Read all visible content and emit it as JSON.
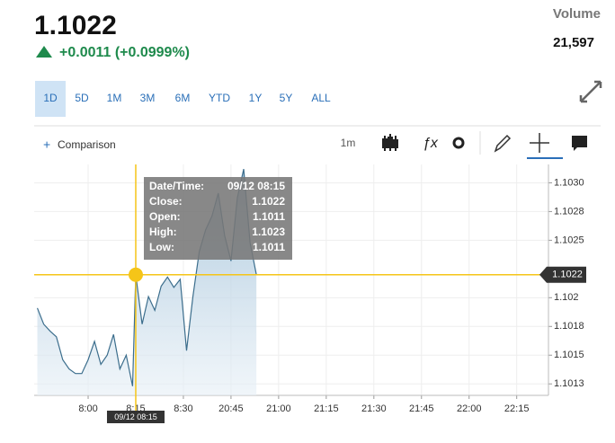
{
  "header": {
    "price": "1.1022",
    "change": "+0.0011 (+0.0999%)",
    "volume_label": "Volume",
    "volume": "21,597"
  },
  "ranges": [
    "1D",
    "5D",
    "1M",
    "3M",
    "6M",
    "YTD",
    "1Y",
    "5Y",
    "ALL"
  ],
  "toolbar": {
    "comparison": "Comparison",
    "interval": "1m"
  },
  "tooltip": {
    "rows": [
      [
        "Date/Time:",
        "09/12 08:15"
      ],
      [
        "Close:",
        "1.1022"
      ],
      [
        "Open:",
        "1.1011"
      ],
      [
        "High:",
        "1.1023"
      ],
      [
        "Low:",
        "1.1011"
      ]
    ]
  },
  "chart_data": {
    "type": "area",
    "x": [
      "07:44",
      "07:46",
      "07:48",
      "07:50",
      "07:52",
      "07:54",
      "07:56",
      "07:58",
      "08:00",
      "08:02",
      "08:04",
      "08:06",
      "08:08",
      "08:10",
      "08:12",
      "08:14",
      "08:15",
      "08:17",
      "08:19",
      "08:21",
      "08:23",
      "08:25",
      "08:27",
      "08:29",
      "08:31",
      "08:33",
      "08:35",
      "08:37",
      "08:39",
      "08:41",
      "08:43",
      "20:45",
      "20:47",
      "20:49",
      "20:51",
      "20:53"
    ],
    "values": [
      1.10191,
      1.10177,
      1.10171,
      1.10166,
      1.10146,
      1.10138,
      1.10134,
      1.10134,
      1.10146,
      1.10162,
      1.10142,
      1.1015,
      1.10168,
      1.10138,
      1.1015,
      1.10123,
      1.1022,
      1.10177,
      1.10201,
      1.10189,
      1.1021,
      1.10218,
      1.10209,
      1.10216,
      1.10154,
      1.10201,
      1.1024,
      1.10259,
      1.10271,
      1.10291,
      1.10254,
      1.10232,
      1.10287,
      1.10312,
      1.10248,
      1.1022
    ],
    "color": "#3b6d8c",
    "xlim": [
      "07:43",
      "22:25"
    ],
    "xticks": [
      "8:00",
      "8:15",
      "8:30",
      "20:45",
      "21:00",
      "21:15",
      "21:30",
      "21:45",
      "22:00",
      "22:15"
    ],
    "ylim": [
      1.10115,
      1.10316
    ],
    "yticks": [
      {
        "value": 1.103,
        "label": "1.1030"
      },
      {
        "value": 1.10275,
        "label": "1.1028"
      },
      1.1025,
      1.102,
      {
        "value": 1.10175,
        "label": "1.1018"
      },
      1.1015,
      {
        "value": 1.10125,
        "label": "1.1013"
      }
    ],
    "grid": true,
    "crosshair": {
      "time": "09/12 08:15",
      "price": 1.1022,
      "color": "#f5c518"
    }
  }
}
